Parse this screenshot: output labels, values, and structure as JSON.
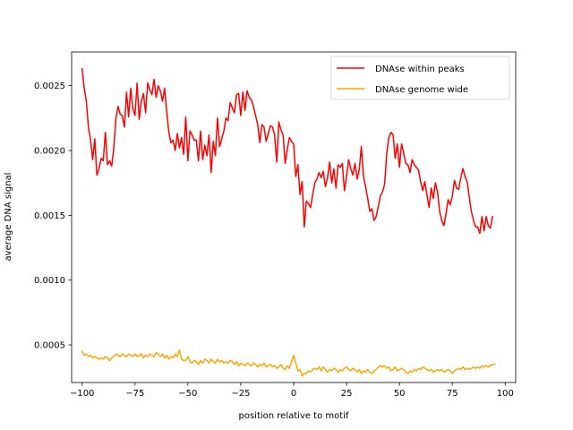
{
  "chart_data": {
    "type": "line",
    "title": "",
    "xlabel": "position relative to motif",
    "ylabel": "average DNA signal",
    "xlim": [
      -104.95,
      104.95
    ],
    "ylim": [
      0.00021,
      0.00276
    ],
    "x_ticks": [
      -100,
      -75,
      -50,
      -25,
      0,
      25,
      50,
      75,
      100
    ],
    "x_tick_labels": [
      "−100",
      "−75",
      "−50",
      "−25",
      "0",
      "25",
      "50",
      "75",
      "100"
    ],
    "y_ticks": [
      0.0005,
      0.001,
      0.0015,
      0.002,
      0.0025
    ],
    "y_tick_labels": [
      "0.0005",
      "0.0010",
      "0.0015",
      "0.0020",
      "0.0025"
    ],
    "grid": false,
    "legend_position": "top-right",
    "x_start": -100,
    "x_step": 1,
    "series": [
      {
        "name": "DNAse within peaks",
        "color": "#ff0000",
        "values": [
          0.00263,
          0.00248,
          0.00238,
          0.00218,
          0.00208,
          0.00193,
          0.00209,
          0.00181,
          0.00186,
          0.00194,
          0.00192,
          0.00214,
          0.00189,
          0.00192,
          0.00188,
          0.00202,
          0.00225,
          0.00234,
          0.00228,
          0.00227,
          0.00218,
          0.00245,
          0.00226,
          0.00248,
          0.00232,
          0.00227,
          0.00252,
          0.00224,
          0.00238,
          0.00244,
          0.00229,
          0.00252,
          0.00247,
          0.00243,
          0.00255,
          0.00241,
          0.0025,
          0.00246,
          0.00238,
          0.00248,
          0.0023,
          0.00214,
          0.00206,
          0.00208,
          0.002,
          0.00213,
          0.00202,
          0.0021,
          0.00197,
          0.00226,
          0.00192,
          0.00215,
          0.00212,
          0.00208,
          0.00208,
          0.00192,
          0.00215,
          0.00193,
          0.00204,
          0.00196,
          0.00212,
          0.00183,
          0.00207,
          0.00196,
          0.00225,
          0.00203,
          0.00209,
          0.00215,
          0.00225,
          0.00223,
          0.00237,
          0.00233,
          0.00229,
          0.00243,
          0.00244,
          0.00227,
          0.00245,
          0.00231,
          0.00246,
          0.00241,
          0.00239,
          0.00234,
          0.00227,
          0.0022,
          0.00206,
          0.0022,
          0.00218,
          0.00207,
          0.00213,
          0.00219,
          0.00218,
          0.00212,
          0.00191,
          0.00222,
          0.00216,
          0.00212,
          0.0019,
          0.00201,
          0.0021,
          0.00207,
          0.00205,
          0.0018,
          0.00189,
          0.00166,
          0.00176,
          0.00141,
          0.00161,
          0.00159,
          0.00156,
          0.00166,
          0.00175,
          0.00178,
          0.00183,
          0.00179,
          0.00184,
          0.00172,
          0.00179,
          0.00191,
          0.00175,
          0.00186,
          0.00171,
          0.00189,
          0.00187,
          0.0019,
          0.00169,
          0.0018,
          0.00193,
          0.00186,
          0.00181,
          0.0019,
          0.00178,
          0.00185,
          0.00203,
          0.0018,
          0.00172,
          0.00163,
          0.00153,
          0.00155,
          0.00146,
          0.00149,
          0.00157,
          0.00165,
          0.00168,
          0.00174,
          0.00198,
          0.0021,
          0.00214,
          0.00212,
          0.00194,
          0.00205,
          0.00187,
          0.00205,
          0.00198,
          0.0019,
          0.00189,
          0.00183,
          0.00193,
          0.00189,
          0.00187,
          0.00185,
          0.00176,
          0.00169,
          0.00176,
          0.00166,
          0.00156,
          0.00171,
          0.00163,
          0.00175,
          0.00168,
          0.00153,
          0.00146,
          0.00142,
          0.00151,
          0.00162,
          0.00158,
          0.00165,
          0.00177,
          0.00171,
          0.0017,
          0.00179,
          0.00186,
          0.0018,
          0.00176,
          0.00164,
          0.00153,
          0.00146,
          0.00141,
          0.00141,
          0.00136,
          0.00149,
          0.00138,
          0.00149,
          0.00142,
          0.0014,
          0.00149
        ]
      },
      {
        "name": "DNAse genome wide",
        "color": "#ffa500",
        "values": [
          0.00045,
          0.00042,
          0.00043,
          0.00041,
          0.00042,
          0.0004,
          0.00041,
          0.0004,
          0.00039,
          0.0004,
          0.00039,
          0.00041,
          0.0004,
          0.00038,
          0.0004,
          0.00041,
          0.00043,
          0.00042,
          0.00041,
          0.00043,
          0.00042,
          0.00041,
          0.00043,
          0.00042,
          0.00041,
          0.00043,
          0.00041,
          0.00042,
          0.00043,
          0.0004,
          0.00042,
          0.00041,
          0.00043,
          0.00042,
          0.00041,
          0.00044,
          0.00043,
          0.00041,
          0.00043,
          0.0004,
          0.00042,
          0.00039,
          0.00041,
          0.0004,
          0.00043,
          0.00041,
          0.00046,
          0.00039,
          0.00038,
          0.00038,
          0.00041,
          0.00037,
          0.00036,
          0.00038,
          0.00037,
          0.00035,
          0.00038,
          0.00036,
          0.00039,
          0.00038,
          0.00036,
          0.00039,
          0.00037,
          0.00036,
          0.00039,
          0.00037,
          0.00038,
          0.00036,
          0.00037,
          0.00036,
          0.00038,
          0.00037,
          0.00035,
          0.00037,
          0.00034,
          0.00036,
          0.00035,
          0.00034,
          0.00036,
          0.00035,
          0.00034,
          0.00036,
          0.00035,
          0.00033,
          0.00035,
          0.00034,
          0.00036,
          0.00033,
          0.00034,
          0.00035,
          0.00033,
          0.00034,
          0.00032,
          0.00033,
          0.00035,
          0.00032,
          0.00031,
          0.00034,
          0.00032,
          0.00037,
          0.00042,
          0.00036,
          0.0003,
          0.00031,
          0.00026,
          0.00028,
          0.00028,
          0.0003,
          0.00029,
          0.00031,
          0.00032,
          0.00031,
          0.00033,
          0.0003,
          0.00033,
          0.00031,
          0.00029,
          0.00031,
          0.0003,
          0.00032,
          0.00031,
          0.00029,
          0.00031,
          0.0003,
          0.00032,
          0.00033,
          0.00031,
          0.0003,
          0.00032,
          0.00031,
          0.00029,
          0.00031,
          0.00028,
          0.0003,
          0.00029,
          0.00031,
          0.00029,
          0.00028,
          0.0003,
          0.00031,
          0.00033,
          0.00034,
          0.00033,
          0.00034,
          0.00032,
          0.00033,
          0.0003,
          0.00031,
          0.00033,
          0.0003,
          0.00031,
          0.00032,
          0.00031,
          0.00029,
          0.00028,
          0.0003,
          0.00029,
          0.00031,
          0.0003,
          0.00032,
          0.00031,
          0.00033,
          0.00032,
          0.00031,
          0.0003,
          0.00031,
          0.00029,
          0.0003,
          0.00031,
          0.0003,
          0.00031,
          0.00029,
          0.0003,
          0.00031,
          0.0003,
          0.00028,
          0.0003,
          0.00031,
          0.00032,
          0.00031,
          0.00033,
          0.00031,
          0.00032,
          0.00031,
          0.00032,
          0.00033,
          0.00032,
          0.00033,
          0.00032,
          0.00034,
          0.00033,
          0.00034,
          0.00033,
          0.00034,
          0.00035,
          0.00035
        ]
      }
    ]
  }
}
